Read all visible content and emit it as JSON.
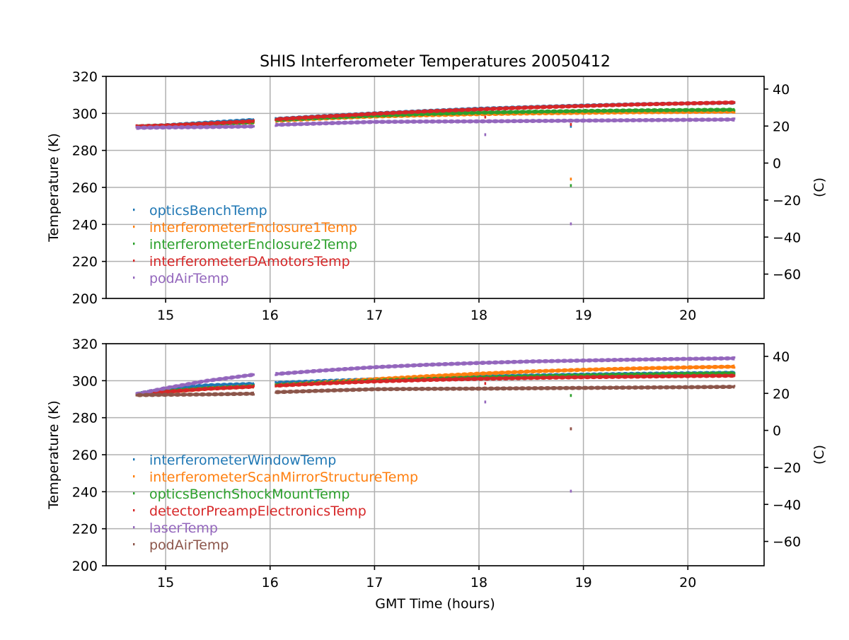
{
  "figure": {
    "title": "SHIS Interferometer Temperatures 20050412"
  },
  "chart_data": [
    {
      "type": "scatter",
      "title": "SHIS Interferometer Temperatures 20050412",
      "xlabel": "",
      "ylabel": "Temperature (K)",
      "ylabel_right": "(C)",
      "xlim": [
        14.43,
        20.73
      ],
      "ylim": [
        200,
        320
      ],
      "ylim_right": [
        -73.15,
        46.85
      ],
      "xticks": [
        "15",
        "16",
        "17",
        "18",
        "19",
        "20"
      ],
      "yticks": [
        "200",
        "220",
        "240",
        "260",
        "280",
        "300",
        "320"
      ],
      "yticks_right": [
        "−60",
        "−40",
        "−20",
        "0",
        "20",
        "40"
      ],
      "grid": true,
      "legend_position": "lower-left",
      "data_gap": [
        15.85,
        16.05
      ],
      "series": [
        {
          "name": "opticsBenchTemp",
          "color": "#1f77b4",
          "x": [
            14.72,
            15.0,
            15.4,
            15.85,
            16.05,
            16.5,
            17.0,
            17.5,
            18.0,
            18.5,
            19.0,
            19.5,
            20.0,
            20.45
          ],
          "y": [
            293.0,
            293.6,
            295.0,
            296.5,
            297.0,
            298.5,
            300.0,
            301.3,
            302.5,
            303.4,
            304.2,
            304.9,
            305.4,
            305.8
          ],
          "outliers": [
            {
              "x": 18.88,
              "y": 293
            }
          ]
        },
        {
          "name": "interferometerEnclosure1Temp",
          "color": "#ff7f0e",
          "x": [
            14.72,
            15.0,
            15.4,
            15.85,
            16.05,
            16.5,
            17.0,
            17.5,
            18.0,
            18.5,
            19.0,
            19.5,
            20.0,
            20.45
          ],
          "y": [
            292.8,
            293.2,
            294.0,
            295.0,
            296.0,
            297.2,
            298.3,
            299.0,
            299.6,
            300.0,
            300.3,
            300.6,
            300.8,
            301.0
          ],
          "outliers": [
            {
              "x": 18.88,
              "y": 264.5
            }
          ]
        },
        {
          "name": "interferometerEnclosure2Temp",
          "color": "#2ca02c",
          "x": [
            14.72,
            15.0,
            15.4,
            15.85,
            16.05,
            16.5,
            17.0,
            17.5,
            18.0,
            18.5,
            19.0,
            19.5,
            20.0,
            20.45
          ],
          "y": [
            292.9,
            293.3,
            294.2,
            295.3,
            296.4,
            297.6,
            298.8,
            299.7,
            300.4,
            300.9,
            301.3,
            301.6,
            301.8,
            302.0
          ],
          "outliers": [
            {
              "x": 18.88,
              "y": 261
            }
          ]
        },
        {
          "name": "interferometerDAmotorsTemp",
          "color": "#d62728",
          "x": [
            14.72,
            15.0,
            15.4,
            15.85,
            16.05,
            16.5,
            17.0,
            17.5,
            18.0,
            18.5,
            19.0,
            19.5,
            20.0,
            20.45
          ],
          "y": [
            293.0,
            293.5,
            294.5,
            295.8,
            296.8,
            298.3,
            299.8,
            301.1,
            302.2,
            303.2,
            304.0,
            304.8,
            305.4,
            305.9
          ],
          "outliers": [
            {
              "x": 18.06,
              "y": 298
            },
            {
              "x": 18.88,
              "y": 294
            }
          ]
        },
        {
          "name": "podAirTemp",
          "color": "#9467bd",
          "x": [
            14.72,
            15.0,
            15.4,
            15.85,
            16.05,
            16.5,
            17.0,
            17.5,
            18.0,
            18.5,
            19.0,
            19.5,
            20.0,
            20.45
          ],
          "y": [
            292.2,
            292.4,
            292.6,
            293.0,
            293.8,
            294.6,
            295.4,
            295.6,
            295.7,
            295.9,
            296.1,
            296.3,
            296.5,
            296.7
          ],
          "outliers": [
            {
              "x": 18.06,
              "y": 288.5
            },
            {
              "x": 18.88,
              "y": 240.3
            }
          ]
        }
      ]
    },
    {
      "type": "scatter",
      "title": "",
      "xlabel": "GMT Time (hours)",
      "ylabel": "Temperature (K)",
      "ylabel_right": "(C)",
      "xlim": [
        14.43,
        20.73
      ],
      "ylim": [
        200,
        320
      ],
      "ylim_right": [
        -73.15,
        46.85
      ],
      "xticks": [
        "15",
        "16",
        "17",
        "18",
        "19",
        "20"
      ],
      "yticks": [
        "200",
        "220",
        "240",
        "260",
        "280",
        "300",
        "320"
      ],
      "yticks_right": [
        "−60",
        "−40",
        "−20",
        "0",
        "20",
        "40"
      ],
      "grid": true,
      "legend_position": "lower-left",
      "data_gap": [
        15.85,
        16.05
      ],
      "series": [
        {
          "name": "interferometerWindowTemp",
          "color": "#1f77b4",
          "x": [
            14.72,
            15.0,
            15.4,
            15.85,
            16.05,
            16.5,
            17.0,
            17.5,
            18.0,
            18.5,
            19.0,
            19.5,
            20.0,
            20.45
          ],
          "y": [
            292.8,
            295.5,
            297.5,
            298.3,
            298.8,
            299.8,
            300.7,
            301.5,
            302.2,
            302.8,
            303.3,
            303.7,
            304.0,
            304.3
          ],
          "outliers": []
        },
        {
          "name": "interferometerScanMirrorStructureTemp",
          "color": "#ff7f0e",
          "x": [
            14.72,
            15.0,
            15.4,
            15.85,
            16.05,
            16.5,
            17.0,
            17.5,
            18.0,
            18.5,
            19.0,
            19.5,
            20.0,
            20.45
          ],
          "y": [
            292.5,
            294.0,
            295.8,
            297.0,
            297.5,
            299.0,
            300.8,
            302.4,
            303.8,
            305.0,
            305.9,
            306.6,
            307.2,
            307.6
          ],
          "outliers": []
        },
        {
          "name": "opticsBenchShockMountTemp",
          "color": "#2ca02c",
          "x": [
            14.72,
            15.0,
            15.4,
            15.85,
            16.05,
            16.5,
            17.0,
            17.5,
            18.0,
            18.5,
            19.0,
            19.5,
            20.0,
            20.45
          ],
          "y": [
            292.8,
            294.3,
            295.9,
            297.0,
            297.6,
            298.8,
            300.0,
            300.9,
            301.7,
            302.4,
            302.9,
            303.3,
            303.7,
            304.0
          ],
          "outliers": [
            {
              "x": 18.88,
              "y": 292
            }
          ]
        },
        {
          "name": "detectorPreampElectronicsTemp",
          "color": "#d62728",
          "x": [
            14.72,
            15.0,
            15.4,
            15.85,
            16.05,
            16.5,
            17.0,
            17.5,
            18.0,
            18.5,
            19.0,
            19.5,
            20.0,
            20.45
          ],
          "y": [
            292.5,
            294.0,
            295.6,
            296.8,
            297.3,
            298.5,
            299.6,
            300.4,
            301.0,
            301.5,
            301.9,
            302.2,
            302.5,
            302.7
          ],
          "outliers": [
            {
              "x": 18.06,
              "y": 298.5
            },
            {
              "x": 18.88,
              "y": 274
            }
          ]
        },
        {
          "name": "laserTemp",
          "color": "#9467bd",
          "x": [
            14.72,
            15.0,
            15.4,
            15.85,
            16.05,
            16.5,
            17.0,
            17.5,
            18.0,
            18.5,
            19.0,
            19.5,
            20.0,
            20.45
          ],
          "y": [
            292.8,
            296.0,
            300.0,
            303.3,
            303.6,
            305.5,
            307.3,
            308.6,
            309.6,
            310.4,
            310.9,
            311.4,
            311.8,
            312.1
          ],
          "outliers": [
            {
              "x": 18.06,
              "y": 288.5
            },
            {
              "x": 18.88,
              "y": 240.3
            }
          ]
        },
        {
          "name": "podAirTemp",
          "color": "#8c564b",
          "x": [
            14.72,
            15.0,
            15.4,
            15.85,
            16.05,
            16.5,
            17.0,
            17.5,
            18.0,
            18.5,
            19.0,
            19.5,
            20.0,
            20.45
          ],
          "y": [
            292.2,
            292.4,
            292.6,
            293.0,
            293.8,
            294.6,
            295.4,
            295.6,
            295.7,
            295.9,
            296.1,
            296.3,
            296.5,
            296.7
          ],
          "outliers": [
            {
              "x": 18.88,
              "y": 274
            }
          ]
        }
      ]
    }
  ]
}
